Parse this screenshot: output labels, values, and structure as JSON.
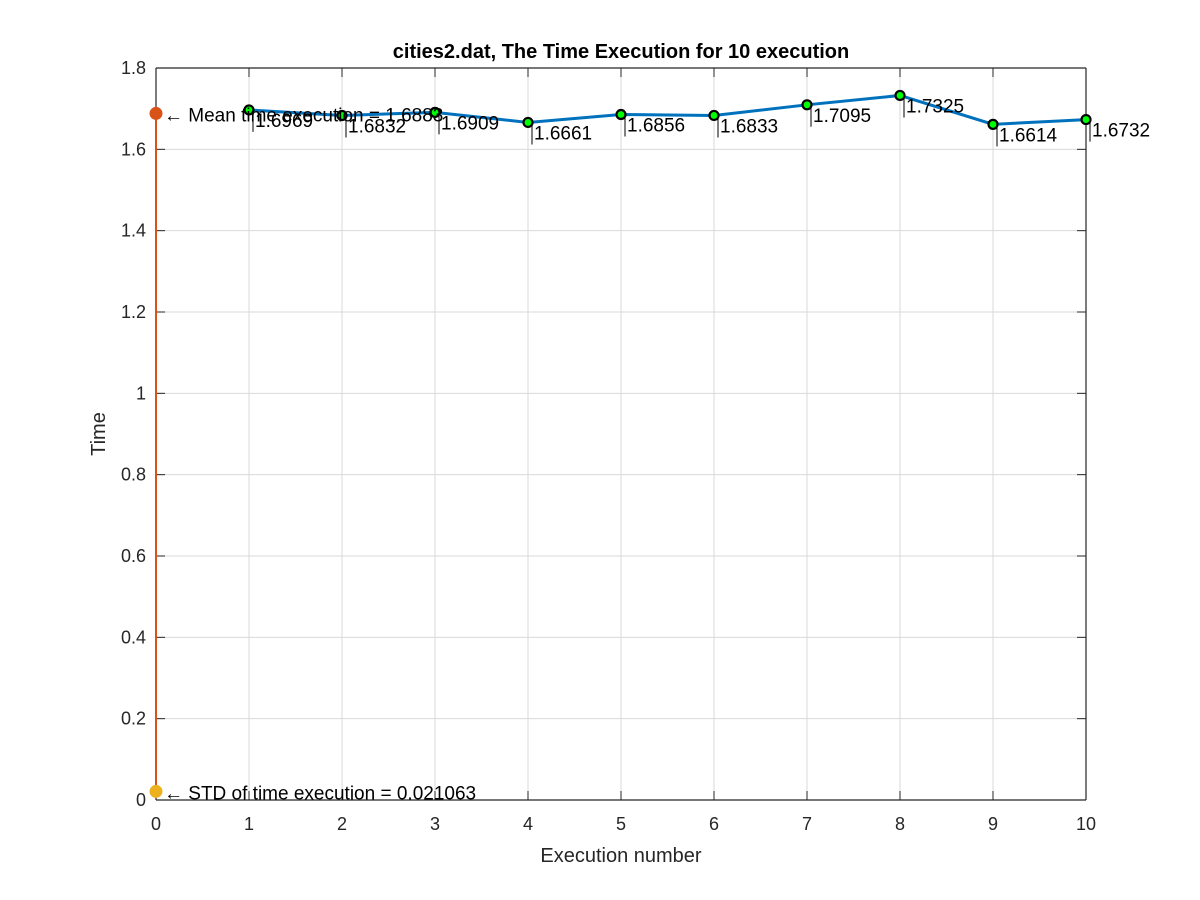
{
  "chart_data": {
    "type": "line",
    "title": "cities2.dat, The Time Execution for 10 execution",
    "xlabel": "Execution number",
    "ylabel": "Time",
    "xlim": [
      0,
      10
    ],
    "ylim": [
      0,
      1.8
    ],
    "xticks": [
      "0",
      "1",
      "2",
      "3",
      "4",
      "5",
      "6",
      "7",
      "8",
      "9",
      "10"
    ],
    "yticks": [
      "0",
      "0.2",
      "0.4",
      "0.6",
      "0.8",
      "1",
      "1.2",
      "1.4",
      "1.6",
      "1.8"
    ],
    "grid": true,
    "colors": {
      "line": "#0072BD",
      "marker_fill": "#00FF00",
      "marker_edge": "#000000",
      "mean_marker": "#D95319",
      "std_marker": "#EDB120",
      "vertical_line": "#D95319",
      "grid": "#d9d9d9",
      "axis": "#262626"
    },
    "series": [
      {
        "x": [
          1,
          2,
          3,
          4,
          5,
          6,
          7,
          8,
          9,
          10
        ],
        "values": [
          1.6969,
          1.6832,
          1.6909,
          1.6661,
          1.6856,
          1.6833,
          1.7095,
          1.7325,
          1.6614,
          1.6732
        ],
        "labels": [
          "1.6969",
          "1.6832",
          "1.6909",
          "1.6661",
          "1.6856",
          "1.6833",
          "1.7095",
          "1.7325",
          "1.6614",
          "1.6732"
        ]
      }
    ],
    "points": [
      {
        "x": 0,
        "y": 1.6883,
        "label": "← Mean time execution = 1.6883"
      },
      {
        "x": 0,
        "y": 0.021063,
        "label": "← STD of time execution = 0.021063"
      }
    ],
    "vertical_segment": {
      "x": 0,
      "y_from": 0.021063,
      "y_to": 1.6883
    }
  }
}
